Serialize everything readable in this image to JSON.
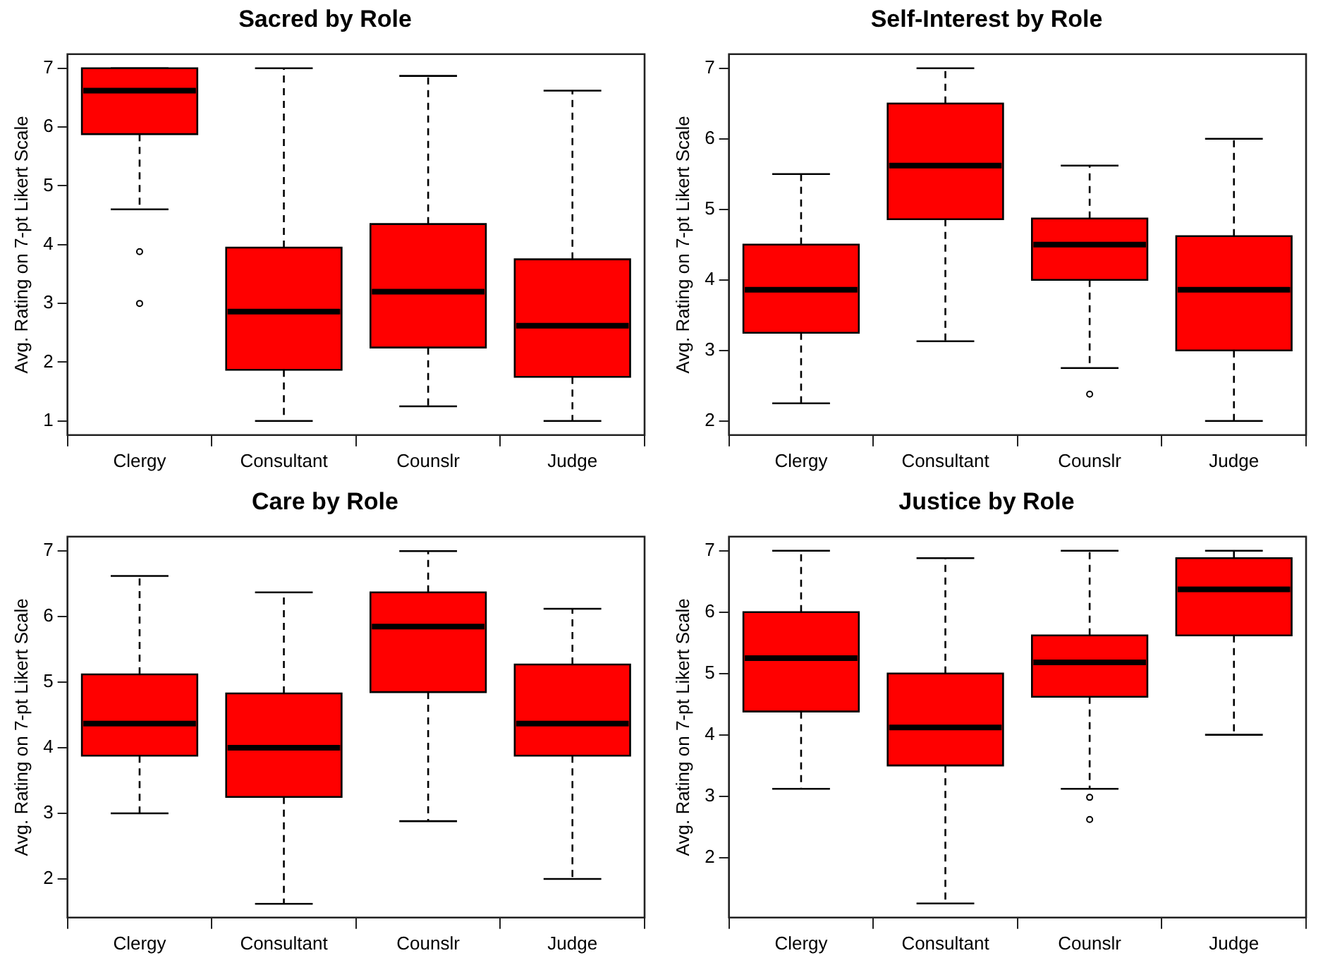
{
  "chart_data": [
    {
      "type": "box",
      "title": "Sacred by Role",
      "ylabel": "Avg. Rating on 7-pt Likert Scale",
      "categories": [
        "Clergy",
        "Consultant",
        "Counslr",
        "Judge"
      ],
      "color": "#ff0000",
      "ylim": [
        0.76,
        7.24
      ],
      "yticks": [
        1,
        2,
        3,
        4,
        5,
        6,
        7
      ],
      "grid": false,
      "boxes": [
        {
          "low": 4.6,
          "q1": 5.88,
          "median": 6.62,
          "q3": 7,
          "high": 7,
          "outliers": [
            3.88,
            3
          ]
        },
        {
          "low": 1,
          "q1": 1.87,
          "median": 2.86,
          "q3": 3.95,
          "high": 7
        },
        {
          "low": 1.25,
          "q1": 2.25,
          "median": 3.2,
          "q3": 4.35,
          "high": 6.87
        },
        {
          "low": 1,
          "q1": 1.75,
          "median": 2.62,
          "q3": 3.75,
          "high": 6.62
        }
      ]
    },
    {
      "type": "box",
      "title": "Self-Interest by Role",
      "ylabel": "Avg. Rating on 7-pt Likert Scale",
      "categories": [
        "Clergy",
        "Consultant",
        "Counslr",
        "Judge"
      ],
      "color": "#ff0000",
      "ylim": [
        1.8,
        7.2
      ],
      "yticks": [
        2,
        3,
        4,
        5,
        6,
        7
      ],
      "grid": false,
      "boxes": [
        {
          "low": 2.25,
          "q1": 3.25,
          "median": 3.86,
          "q3": 4.5,
          "high": 5.5
        },
        {
          "low": 3.13,
          "q1": 4.86,
          "median": 5.62,
          "q3": 6.5,
          "high": 7
        },
        {
          "low": 2.75,
          "q1": 4,
          "median": 4.5,
          "q3": 4.87,
          "high": 5.62,
          "outliers": [
            2.38
          ]
        },
        {
          "low": 2,
          "q1": 3,
          "median": 3.86,
          "q3": 4.62,
          "high": 6
        }
      ]
    },
    {
      "type": "box",
      "title": "Care by Role",
      "ylabel": "Avg. Rating on 7-pt Likert Scale",
      "categories": [
        "Clergy",
        "Consultant",
        "Counslr",
        "Judge"
      ],
      "color": "#ff0000",
      "ylim": [
        1.41,
        7.22
      ],
      "yticks": [
        2,
        3,
        4,
        5,
        6,
        7
      ],
      "grid": false,
      "boxes": [
        {
          "low": 3,
          "q1": 3.88,
          "median": 4.37,
          "q3": 5.12,
          "high": 6.62
        },
        {
          "low": 1.62,
          "q1": 3.25,
          "median": 4,
          "q3": 4.83,
          "high": 6.37
        },
        {
          "low": 2.88,
          "q1": 4.85,
          "median": 5.85,
          "q3": 6.37,
          "high": 7
        },
        {
          "low": 2,
          "q1": 3.88,
          "median": 4.37,
          "q3": 5.27,
          "high": 6.12
        }
      ]
    },
    {
      "type": "box",
      "title": "Justice by Role",
      "ylabel": "Avg. Rating on 7-pt Likert Scale",
      "categories": [
        "Clergy",
        "Consultant",
        "Counslr",
        "Judge"
      ],
      "color": "#ff0000",
      "ylim": [
        1.02,
        7.23
      ],
      "yticks": [
        2,
        3,
        4,
        5,
        6,
        7
      ],
      "grid": false,
      "boxes": [
        {
          "low": 3.12,
          "q1": 4.38,
          "median": 5.25,
          "q3": 6,
          "high": 7
        },
        {
          "low": 1.25,
          "q1": 3.5,
          "median": 4.12,
          "q3": 5,
          "high": 6.88
        },
        {
          "low": 3.12,
          "q1": 4.62,
          "median": 5.18,
          "q3": 5.62,
          "high": 7,
          "outliers": [
            2.98,
            2.62
          ]
        },
        {
          "low": 4,
          "q1": 5.62,
          "median": 6.37,
          "q3": 6.88,
          "high": 7
        }
      ]
    }
  ]
}
